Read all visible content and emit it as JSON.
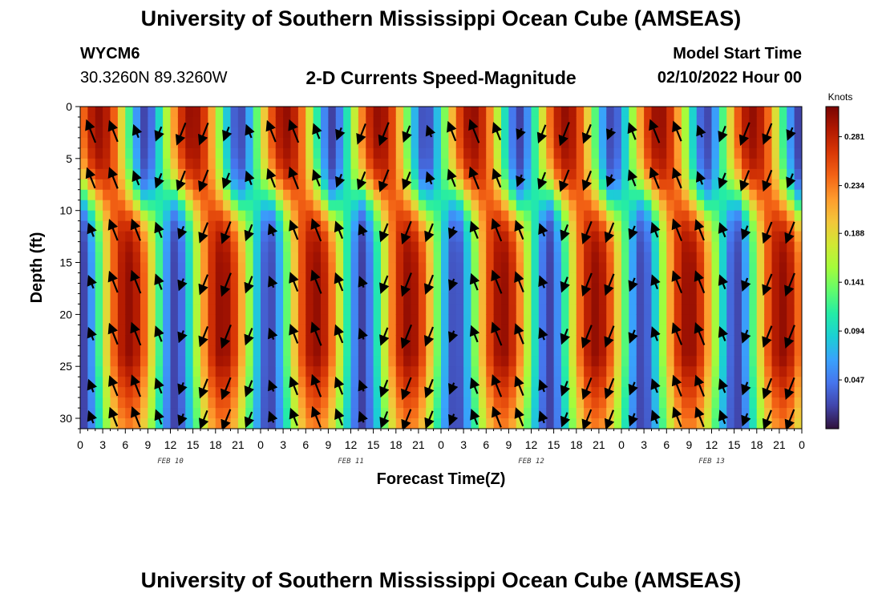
{
  "header": {
    "title": "University of Southern Mississippi Ocean Cube (AMSEAS)",
    "station_id": "WYCM6",
    "coordinates": "30.3260N  89.3260W",
    "subtitle": "2-D Currents Speed-Magnitude",
    "model_start_label": "Model Start Time",
    "model_start_value": "02/10/2022 Hour 00"
  },
  "footer": {
    "title": "University of Southern Mississippi Ocean Cube (AMSEAS)"
  },
  "chart_data": {
    "type": "heatmap",
    "xlabel": "Forecast Time(Z)",
    "ylabel": "Depth (ft)",
    "colorbar_label": "Knots",
    "x_tick_labels": [
      "0",
      "3",
      "6",
      "9",
      "12",
      "15",
      "18",
      "21",
      "0",
      "3",
      "6",
      "9",
      "12",
      "15",
      "18",
      "21",
      "0",
      "3",
      "6",
      "9",
      "12",
      "15",
      "18",
      "21",
      "0",
      "3",
      "6",
      "9",
      "12",
      "15",
      "18",
      "21",
      "0"
    ],
    "x_date_labels": [
      {
        "label": "FEB 10",
        "hour": 12
      },
      {
        "label": "FEB 11",
        "hour": 36
      },
      {
        "label": "FEB 12",
        "hour": 60
      },
      {
        "label": "FEB 13",
        "hour": 84
      }
    ],
    "x_range_hours": [
      0,
      96
    ],
    "y_ticks": [
      0,
      5,
      10,
      15,
      20,
      25,
      30
    ],
    "y_range": [
      0,
      31
    ],
    "y_inverted": true,
    "colorbar_ticks": [
      0.047,
      0.094,
      0.141,
      0.188,
      0.234,
      0.281
    ],
    "colorbar_range": [
      0,
      0.31
    ],
    "colormap": [
      "#30123b",
      "#4145ab",
      "#4675ed",
      "#39a2fc",
      "#1bcfd4",
      "#24eca6",
      "#61fc6c",
      "#a4fc3b",
      "#d1e834",
      "#f3c63a",
      "#fe9b2d",
      "#f36315",
      "#d93806",
      "#b11901",
      "#7a0403"
    ],
    "vectors_shown": true
  }
}
